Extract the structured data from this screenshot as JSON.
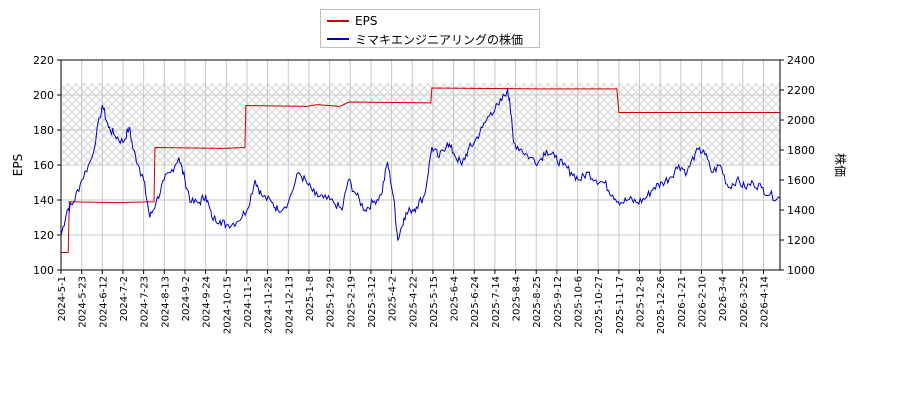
{
  "chart_data": {
    "type": "line",
    "title": "",
    "legend": [
      "EPS",
      "ミマキエンジニアリングの株価"
    ],
    "legend_position": "top-center",
    "grid": true,
    "left_axis": {
      "label": "EPS",
      "ticks": [
        100,
        120,
        140,
        160,
        180,
        200,
        220
      ],
      "range": [
        100,
        220
      ]
    },
    "right_axis": {
      "label": "株価",
      "ticks": [
        1000,
        1200,
        1400,
        1600,
        1800,
        2000,
        2200,
        2400
      ],
      "range": [
        1000,
        2400
      ]
    },
    "x_tick_labels": [
      "2024-5-1",
      "2024-5-23",
      "2024-6-12",
      "2024-7-2",
      "2024-7-23",
      "2024-8-13",
      "2024-9-2",
      "2024-9-24",
      "2024-10-15",
      "2024-11-5",
      "2024-11-25",
      "2024-12-13",
      "2025-1-8",
      "2025-1-29",
      "2025-2-19",
      "2025-3-12",
      "2025-4-2",
      "2025-4-22",
      "2025-5-15",
      "2025-6-4",
      "2025-6-24",
      "2025-7-14",
      "2025-8-4",
      "2025-8-25",
      "2025-9-12",
      "2025-10-6",
      "2025-10-27",
      "2025-11-17",
      "2025-12-8",
      "2025-12-26",
      "2026-1-21",
      "2026-2-10",
      "2026-3-4",
      "2026-3-25",
      "2026-4-14"
    ],
    "series": [
      {
        "name": "EPS",
        "axis": "left",
        "color": "#cc0000",
        "points": [
          [
            0,
            110
          ],
          [
            0.35,
            110
          ],
          [
            0.4,
            139
          ],
          [
            2.6,
            138.5
          ],
          [
            4.5,
            139
          ],
          [
            4.55,
            170
          ],
          [
            7.9,
            169.5
          ],
          [
            8.9,
            170
          ],
          [
            8.95,
            194
          ],
          [
            11.9,
            193.5
          ],
          [
            12.4,
            194.5
          ],
          [
            13.5,
            193.5
          ],
          [
            13.95,
            196
          ],
          [
            17.9,
            195.5
          ],
          [
            17.95,
            204
          ],
          [
            23.2,
            203.5
          ],
          [
            26.9,
            203.5
          ],
          [
            27.0,
            190
          ],
          [
            28.0,
            190
          ],
          [
            31.5,
            190
          ],
          [
            34.8,
            190
          ]
        ]
      },
      {
        "name": "ミマキエンジニアリングの株価",
        "axis": "right",
        "color": "#0000cc",
        "points": [
          [
            0,
            1230
          ],
          [
            0.3,
            1400
          ],
          [
            0.6,
            1450
          ],
          [
            1,
            1600
          ],
          [
            1.5,
            1750
          ],
          [
            2,
            2100
          ],
          [
            2.3,
            1950
          ],
          [
            2.6,
            1900
          ],
          [
            3,
            1850
          ],
          [
            3.3,
            1950
          ],
          [
            3.5,
            1800
          ],
          [
            3.8,
            1680
          ],
          [
            4,
            1600
          ],
          [
            4.3,
            1350
          ],
          [
            4.6,
            1450
          ],
          [
            5,
            1600
          ],
          [
            5.3,
            1650
          ],
          [
            5.7,
            1750
          ],
          [
            6,
            1600
          ],
          [
            6.3,
            1450
          ],
          [
            6.7,
            1450
          ],
          [
            7,
            1500
          ],
          [
            7.3,
            1350
          ],
          [
            7.7,
            1330
          ],
          [
            8,
            1300
          ],
          [
            8.5,
            1320
          ],
          [
            9,
            1400
          ],
          [
            9.4,
            1600
          ],
          [
            9.7,
            1500
          ],
          [
            10.2,
            1450
          ],
          [
            10.5,
            1400
          ],
          [
            11,
            1450
          ],
          [
            11.5,
            1650
          ],
          [
            11.9,
            1580
          ],
          [
            12.3,
            1500
          ],
          [
            12.7,
            1480
          ],
          [
            13.2,
            1450
          ],
          [
            13.6,
            1400
          ],
          [
            13.9,
            1600
          ],
          [
            14.3,
            1500
          ],
          [
            14.7,
            1400
          ],
          [
            15.1,
            1450
          ],
          [
            15.5,
            1500
          ],
          [
            15.8,
            1720
          ],
          [
            16.1,
            1480
          ],
          [
            16.3,
            1200
          ],
          [
            16.6,
            1350
          ],
          [
            16.9,
            1400
          ],
          [
            17.2,
            1420
          ],
          [
            17.6,
            1500
          ],
          [
            17.95,
            1820
          ],
          [
            18.3,
            1750
          ],
          [
            18.7,
            1850
          ],
          [
            19,
            1780
          ],
          [
            19.4,
            1700
          ],
          [
            19.7,
            1800
          ],
          [
            20,
            1850
          ],
          [
            20.4,
            1950
          ],
          [
            20.8,
            2050
          ],
          [
            21.2,
            2100
          ],
          [
            21.6,
            2200
          ],
          [
            21.7,
            2150
          ],
          [
            21.9,
            1850
          ],
          [
            22.3,
            1800
          ],
          [
            22.7,
            1750
          ],
          [
            23.1,
            1720
          ],
          [
            23.5,
            1800
          ],
          [
            23.9,
            1750
          ],
          [
            24.3,
            1700
          ],
          [
            24.7,
            1650
          ],
          [
            25.1,
            1600
          ],
          [
            25.5,
            1650
          ],
          [
            25.9,
            1600
          ],
          [
            26.3,
            1580
          ],
          [
            26.7,
            1500
          ],
          [
            27.1,
            1450
          ],
          [
            27.5,
            1470
          ],
          [
            27.9,
            1450
          ],
          [
            28.3,
            1480
          ],
          [
            28.7,
            1550
          ],
          [
            29.1,
            1580
          ],
          [
            29.5,
            1620
          ],
          [
            29.9,
            1700
          ],
          [
            30.3,
            1650
          ],
          [
            30.7,
            1780
          ],
          [
            31.1,
            1800
          ],
          [
            31.5,
            1650
          ],
          [
            31.9,
            1700
          ],
          [
            32.3,
            1550
          ],
          [
            32.7,
            1600
          ],
          [
            33.1,
            1550
          ],
          [
            33.5,
            1580
          ],
          [
            33.9,
            1550
          ],
          [
            34.3,
            1500
          ],
          [
            34.8,
            1480
          ]
        ]
      }
    ]
  }
}
